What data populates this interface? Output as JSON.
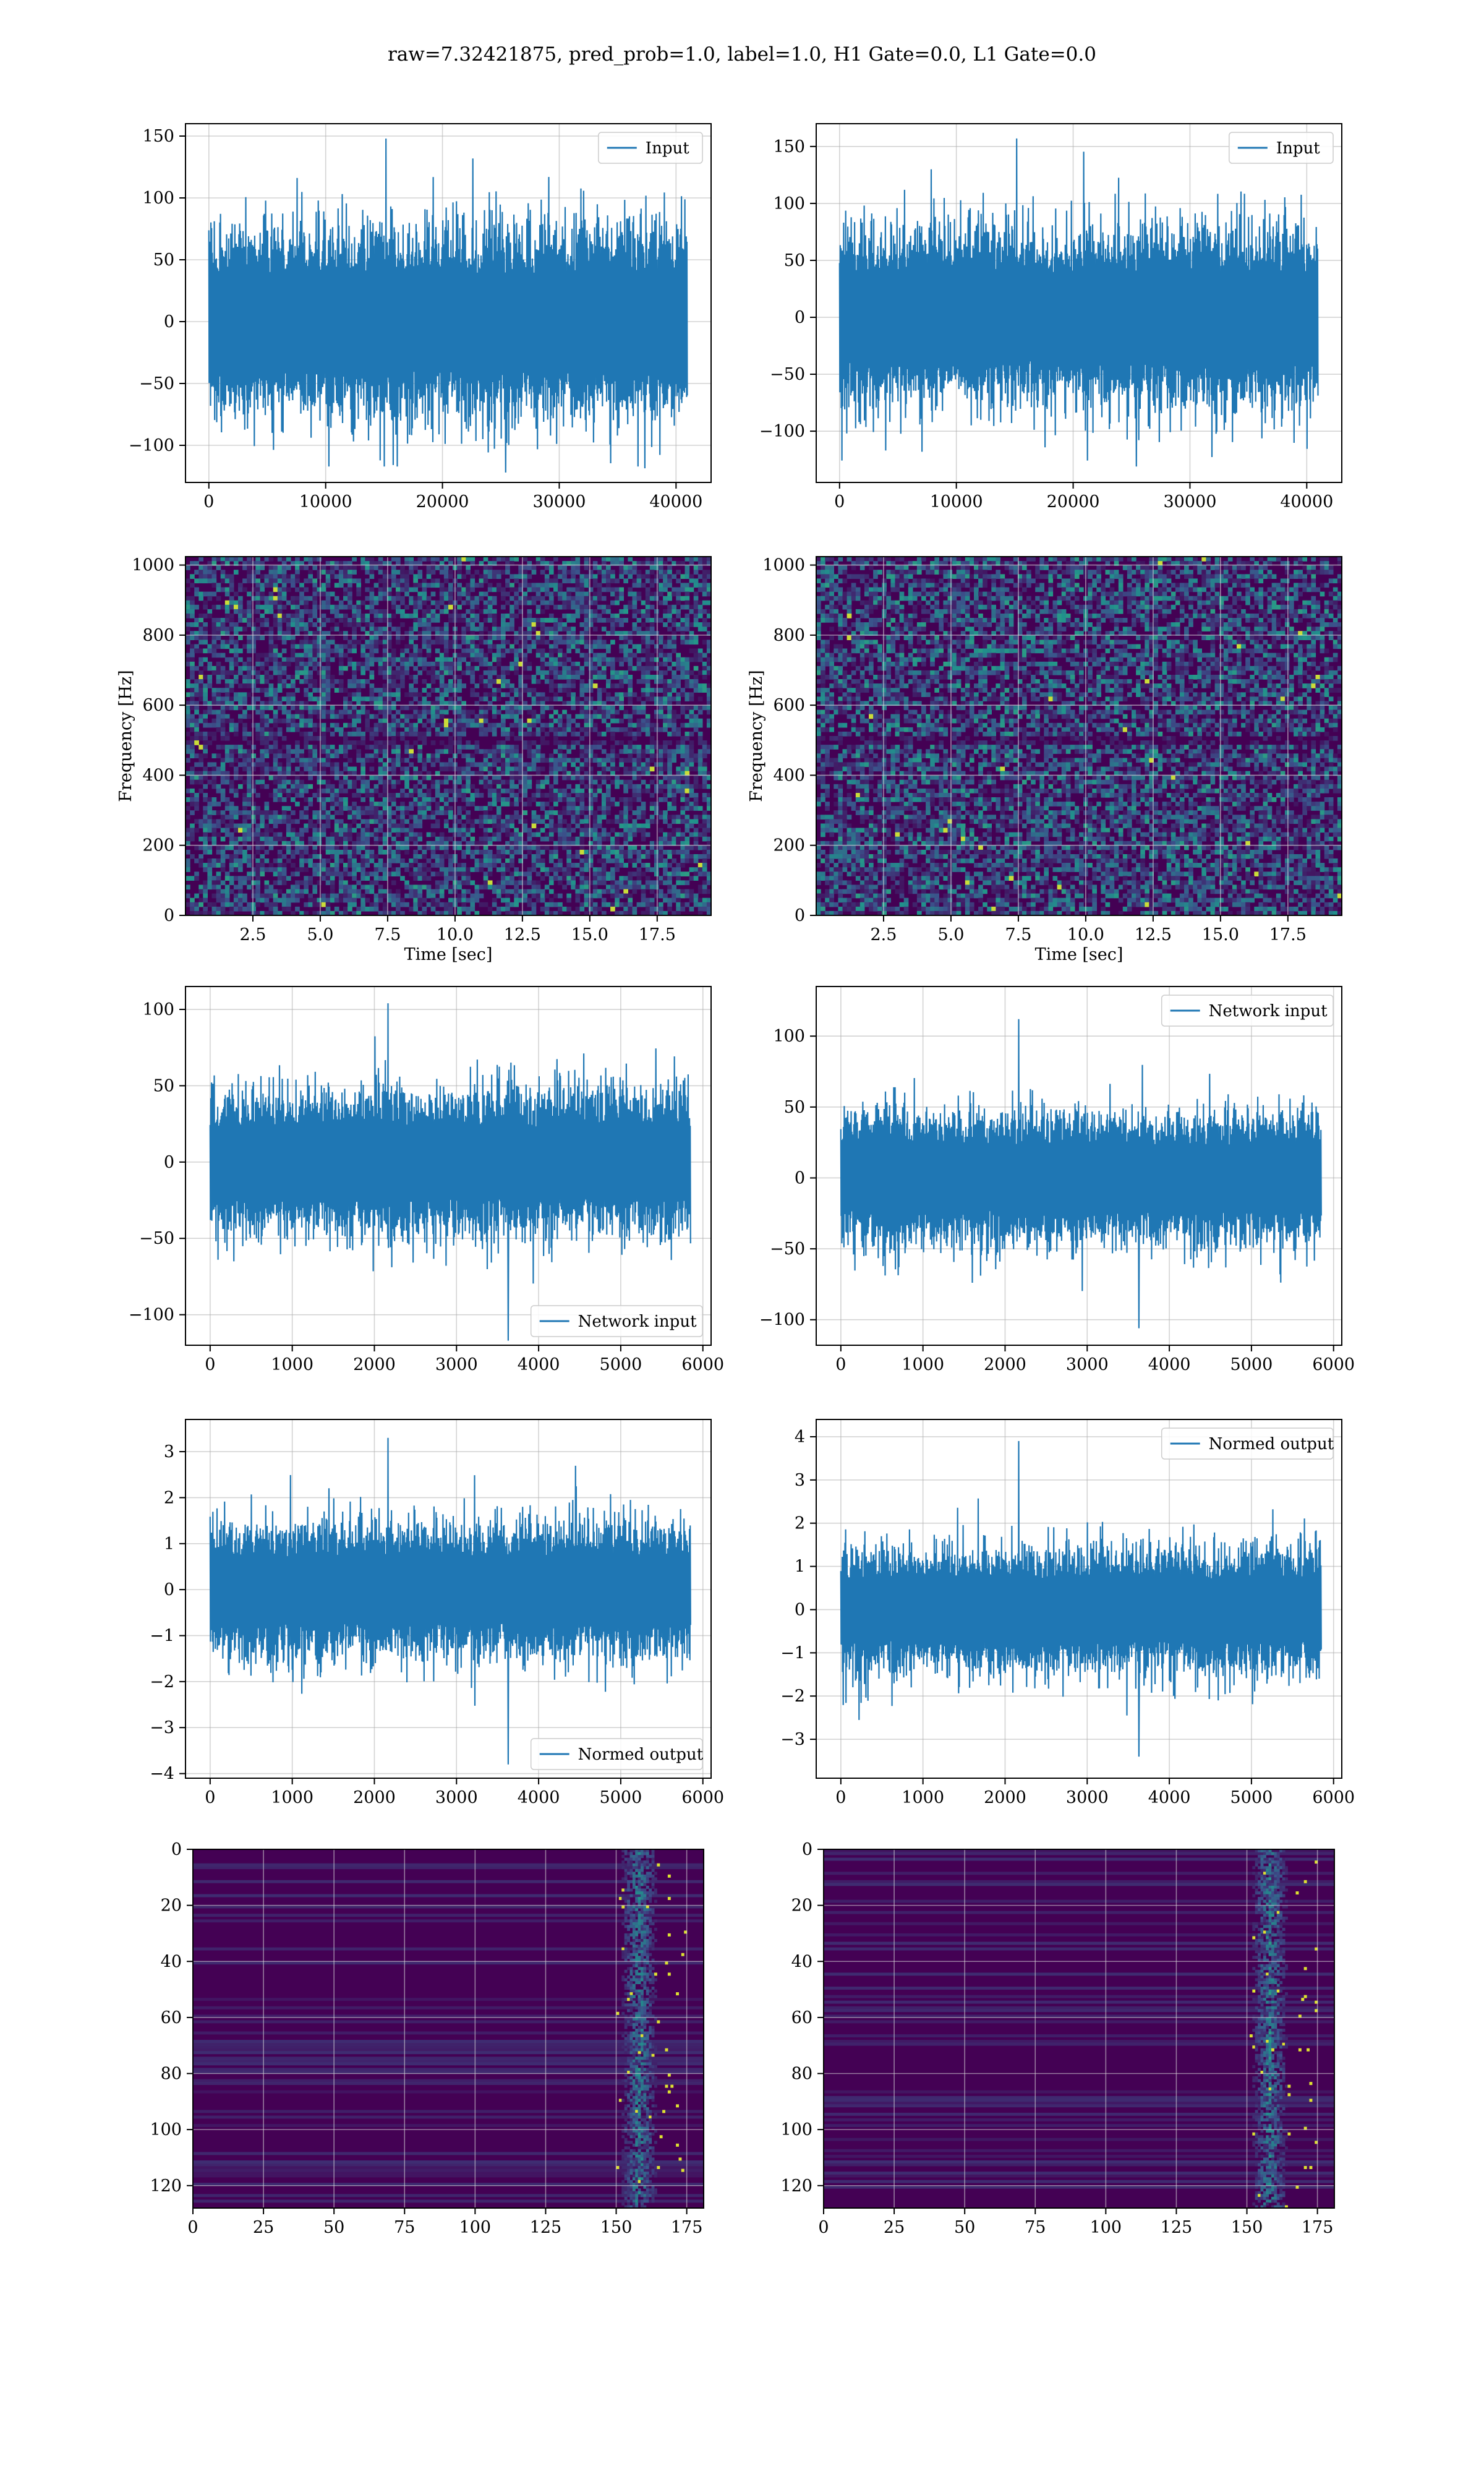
{
  "figure": {
    "suptitle": "raw=7.32421875, pred_prob=1.0, label=1.0, H1 Gate=0.0, L1 Gate=0.0"
  },
  "colors": {
    "line": "#1f77b4",
    "grid": "#b0b0b0",
    "viridis_dark": "#440154",
    "viridis_mid": "#21918c",
    "viridis_bright": "#fde725"
  },
  "chart_data": [
    {
      "id": "input-left",
      "type": "line",
      "xlim": [
        -2000,
        43000
      ],
      "ylim": [
        -130,
        160
      ],
      "xticks": [
        0,
        10000,
        20000,
        30000,
        40000
      ],
      "yticks": [
        -100,
        -50,
        0,
        50,
        100,
        150
      ],
      "legend": {
        "label": "Input",
        "loc": "upper right"
      },
      "series": {
        "x_range": [
          0,
          40960
        ],
        "envelope": 70,
        "max": 148,
        "min": -122
      }
    },
    {
      "id": "input-right",
      "type": "line",
      "xlim": [
        -2000,
        43000
      ],
      "ylim": [
        -145,
        170
      ],
      "xticks": [
        0,
        10000,
        20000,
        30000,
        40000
      ],
      "yticks": [
        -100,
        -50,
        0,
        50,
        100,
        150
      ],
      "legend": {
        "label": "Input",
        "loc": "upper right"
      },
      "series": {
        "x_range": [
          0,
          40960
        ],
        "envelope": 70,
        "max": 157,
        "min": -131
      }
    },
    {
      "id": "spectrogram-left",
      "type": "heatmap",
      "xlim": [
        0,
        19.5
      ],
      "ylim": [
        0,
        1024
      ],
      "xticks": [
        2.5,
        5.0,
        7.5,
        10.0,
        12.5,
        15.0,
        17.5
      ],
      "yticks": [
        0,
        200,
        400,
        600,
        800,
        1000
      ],
      "xlabel": "Time [sec]",
      "ylabel": "Frequency [Hz]",
      "colormap": "viridis"
    },
    {
      "id": "spectrogram-right",
      "type": "heatmap",
      "xlim": [
        0,
        19.5
      ],
      "ylim": [
        0,
        1024
      ],
      "xticks": [
        2.5,
        5.0,
        7.5,
        10.0,
        12.5,
        15.0,
        17.5
      ],
      "yticks": [
        0,
        200,
        400,
        600,
        800,
        1000
      ],
      "xlabel": "Time [sec]",
      "ylabel": "Frequency [Hz]",
      "colormap": "viridis"
    },
    {
      "id": "network-left",
      "type": "line",
      "xlim": [
        -300,
        6100
      ],
      "ylim": [
        -120,
        115
      ],
      "xticks": [
        0,
        1000,
        2000,
        3000,
        4000,
        5000,
        6000
      ],
      "yticks": [
        -100,
        -50,
        0,
        50,
        100
      ],
      "legend": {
        "label": "Network input",
        "loc": "lower right"
      },
      "series": {
        "x_range": [
          0,
          5850
        ],
        "envelope": 42,
        "max": 104,
        "min": -117
      }
    },
    {
      "id": "network-right",
      "type": "line",
      "xlim": [
        -300,
        6100
      ],
      "ylim": [
        -118,
        135
      ],
      "xticks": [
        0,
        1000,
        2000,
        3000,
        4000,
        5000,
        6000
      ],
      "yticks": [
        -100,
        -50,
        0,
        50,
        100
      ],
      "legend": {
        "label": "Network input",
        "loc": "upper right"
      },
      "series": {
        "x_range": [
          0,
          5850
        ],
        "envelope": 42,
        "max": 112,
        "min": -106
      }
    },
    {
      "id": "normed-left",
      "type": "line",
      "xlim": [
        -300,
        6100
      ],
      "ylim": [
        -4.1,
        3.7
      ],
      "xticks": [
        0,
        1000,
        2000,
        3000,
        4000,
        5000,
        6000
      ],
      "yticks": [
        -4,
        -3,
        -2,
        -1,
        0,
        1,
        2,
        3
      ],
      "legend": {
        "label": "Normed output",
        "loc": "lower right"
      },
      "series": {
        "x_range": [
          0,
          5850
        ],
        "envelope": 1.3,
        "max": 3.3,
        "min": -3.8
      }
    },
    {
      "id": "normed-right",
      "type": "line",
      "xlim": [
        -300,
        6100
      ],
      "ylim": [
        -3.9,
        4.4
      ],
      "xticks": [
        0,
        1000,
        2000,
        3000,
        4000,
        5000,
        6000
      ],
      "yticks": [
        -3,
        -2,
        -1,
        0,
        1,
        2,
        3,
        4
      ],
      "legend": {
        "label": "Normed output",
        "loc": "upper right"
      },
      "series": {
        "x_range": [
          0,
          5850
        ],
        "envelope": 1.3,
        "max": 3.9,
        "min": -3.4
      }
    },
    {
      "id": "feature-left",
      "type": "heatmap",
      "xlim": [
        0,
        181
      ],
      "ylim": [
        128,
        0
      ],
      "xticks": [
        0,
        25,
        50,
        75,
        100,
        125,
        150,
        175
      ],
      "yticks": [
        0,
        20,
        40,
        60,
        80,
        100,
        120
      ],
      "colormap": "viridis",
      "active_band": [
        150,
        175
      ]
    },
    {
      "id": "feature-right",
      "type": "heatmap",
      "xlim": [
        0,
        181
      ],
      "ylim": [
        128,
        0
      ],
      "xticks": [
        0,
        25,
        50,
        75,
        100,
        125,
        150,
        175
      ],
      "yticks": [
        0,
        20,
        40,
        60,
        80,
        100,
        120
      ],
      "colormap": "viridis",
      "active_band": [
        150,
        175
      ]
    }
  ]
}
